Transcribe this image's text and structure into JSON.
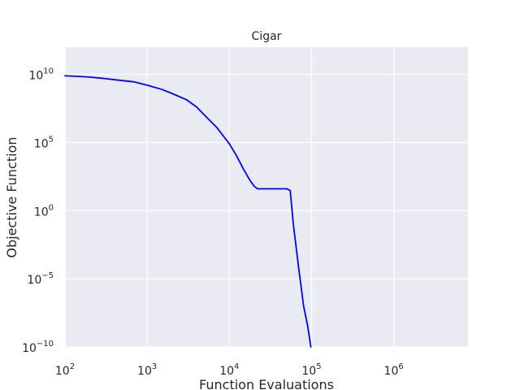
{
  "chart_data": {
    "type": "line",
    "title": "Cigar",
    "xlabel": "Function Evaluations",
    "ylabel": "Objective Function",
    "x_scale": "log",
    "y_scale": "log",
    "xlim": [
      100,
      8000000
    ],
    "ylim": [
      1e-10,
      1000000000000.0
    ],
    "grid": true,
    "legend": "none",
    "background_color": "#EAEAF2",
    "grid_color": "#FFFFFF",
    "x_ticks": [
      {
        "value": 100,
        "base": "10",
        "exp": "2"
      },
      {
        "value": 1000,
        "base": "10",
        "exp": "3"
      },
      {
        "value": 10000,
        "base": "10",
        "exp": "4"
      },
      {
        "value": 100000,
        "base": "10",
        "exp": "5"
      },
      {
        "value": 1000000,
        "base": "10",
        "exp": "6"
      }
    ],
    "y_ticks": [
      {
        "value": 1e-10,
        "base": "10",
        "exp": "−10"
      },
      {
        "value": 1e-05,
        "base": "10",
        "exp": "−5"
      },
      {
        "value": 1,
        "base": "10",
        "exp": "0"
      },
      {
        "value": 100000.0,
        "base": "10",
        "exp": "5"
      },
      {
        "value": 10000000000.0,
        "base": "10",
        "exp": "10"
      }
    ],
    "series": [
      {
        "color": "#0000FF",
        "x": [
          100,
          150,
          200,
          300,
          500,
          700,
          1000,
          1500,
          2000,
          3000,
          4000,
          5000,
          7000,
          10000,
          12000,
          15000,
          18000,
          20000,
          22000,
          25000,
          30000,
          40000,
          50000,
          55000,
          60000,
          70000,
          80000,
          90000,
          98000
        ],
        "y": [
          7900000000.0,
          7000000000.0,
          6300000000.0,
          5000000000.0,
          3500000000.0,
          2800000000.0,
          1600000000.0,
          800000000.0,
          400000000.0,
          140000000.0,
          40000000.0,
          10000000.0,
          1300000.0,
          80000.0,
          13000.0,
          1000.0,
          150,
          63,
          40,
          40,
          40,
          40,
          40,
          30,
          0.1,
          5e-05,
          1e-07,
          3e-09,
          1e-10
        ]
      }
    ]
  }
}
